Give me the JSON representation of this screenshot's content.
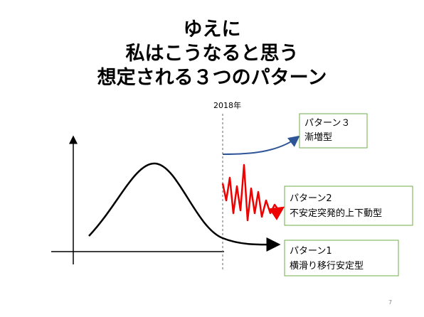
{
  "title": {
    "lines": [
      "ゆえに",
      "私はこうなると思う",
      "想定される３つのパターン"
    ]
  },
  "timeline_label": "2018年",
  "patterns": [
    {
      "name": "パターン３",
      "description": "漸増型"
    },
    {
      "name": "パターン2",
      "description": "不安定突発的上下動型"
    },
    {
      "name": "パターン1",
      "description": "横滑り移行安定型"
    }
  ],
  "page_number": 7
}
